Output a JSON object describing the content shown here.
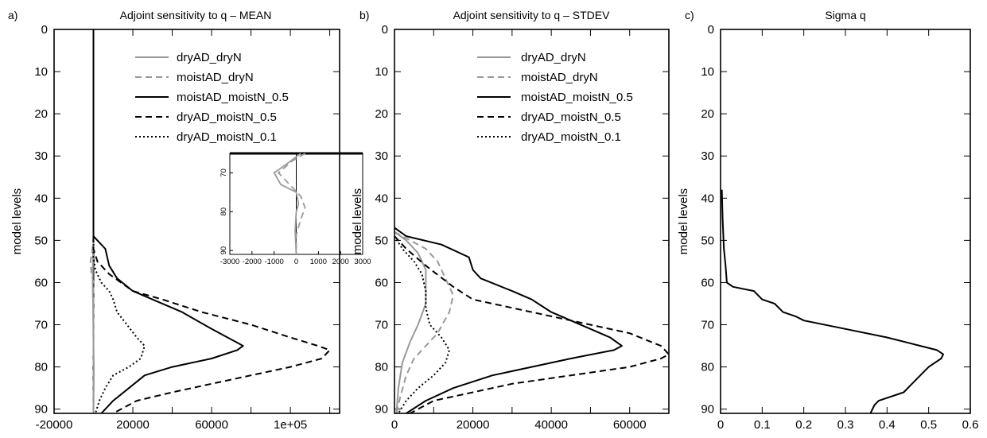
{
  "figure": {
    "ylabel": "model levels"
  },
  "chart_data": [
    {
      "type": "line",
      "panel_label": "a)",
      "title": "Adjoint sensitivity to q – MEAN",
      "xlabel": "",
      "ylabel": "model levels",
      "xlim": [
        -20000,
        125000
      ],
      "ylim": [
        91,
        0
      ],
      "y_inverted": true,
      "xticks": [
        -20000,
        0,
        20000,
        40000,
        60000,
        80000,
        100000,
        120000
      ],
      "xtick_labels": [
        "-20000",
        "",
        "20000",
        "",
        "60000",
        "",
        "1e+05",
        ""
      ],
      "yticks": [
        0,
        10,
        20,
        30,
        40,
        50,
        60,
        70,
        80,
        90
      ],
      "ytick_labels": [
        "0",
        "10",
        "20",
        "30",
        "40",
        "50",
        "60",
        "70",
        "80",
        "90"
      ],
      "vline_x": 0,
      "legend_position": "top-right",
      "series": [
        {
          "name": "dryAD_dryN",
          "color": "#999999",
          "style": "solid",
          "points": [
            [
              0,
              0
            ],
            [
              0,
              50
            ],
            [
              -300,
              55
            ],
            [
              -400,
              60
            ],
            [
              -200,
              65
            ],
            [
              -100,
              70
            ],
            [
              0,
              75
            ],
            [
              200,
              80
            ],
            [
              100,
              85
            ],
            [
              0,
              91
            ]
          ]
        },
        {
          "name": "moistAD_dryN",
          "color": "#999999",
          "style": "dashed",
          "points": [
            [
              0,
              0
            ],
            [
              0,
              49
            ],
            [
              -500,
              52
            ],
            [
              -1500,
              55
            ],
            [
              -1000,
              58
            ],
            [
              0,
              60
            ],
            [
              0,
              91
            ]
          ]
        },
        {
          "name": "moistAD_moistN_0.5",
          "color": "#000000",
          "style": "solid",
          "points": [
            [
              0,
              0
            ],
            [
              0,
              49
            ],
            [
              2000,
              50
            ],
            [
              6000,
              52
            ],
            [
              8000,
              56
            ],
            [
              12000,
              59
            ],
            [
              20000,
              62
            ],
            [
              30000,
              64
            ],
            [
              45000,
              67
            ],
            [
              60000,
              71
            ],
            [
              72000,
              74
            ],
            [
              76000,
              75
            ],
            [
              73000,
              76
            ],
            [
              60000,
              78
            ],
            [
              40000,
              80
            ],
            [
              26000,
              82
            ],
            [
              18000,
              85
            ],
            [
              10000,
              88
            ],
            [
              4000,
              91
            ]
          ]
        },
        {
          "name": "dryAD_moistN_0.5",
          "color": "#000000",
          "style": "dashed",
          "points": [
            [
              0,
              0
            ],
            [
              0,
              52
            ],
            [
              2000,
              55
            ],
            [
              8000,
              58
            ],
            [
              20000,
              62
            ],
            [
              35000,
              64
            ],
            [
              55000,
              67
            ],
            [
              80000,
              70
            ],
            [
              100000,
              73
            ],
            [
              114000,
              75
            ],
            [
              120000,
              76
            ],
            [
              116000,
              78
            ],
            [
              100000,
              80
            ],
            [
              80000,
              82
            ],
            [
              60000,
              84
            ],
            [
              40000,
              86
            ],
            [
              22000,
              88
            ],
            [
              10000,
              91
            ]
          ]
        },
        {
          "name": "dryAD_moistN_0.1",
          "color": "#000000",
          "style": "dotted",
          "points": [
            [
              0,
              0
            ],
            [
              0,
              54
            ],
            [
              1000,
              57
            ],
            [
              4000,
              60
            ],
            [
              8000,
              62
            ],
            [
              10000,
              64
            ],
            [
              12000,
              67
            ],
            [
              17000,
              70
            ],
            [
              22000,
              73
            ],
            [
              26000,
              75
            ],
            [
              24000,
              78
            ],
            [
              18000,
              80
            ],
            [
              10000,
              82
            ],
            [
              6000,
              85
            ],
            [
              3000,
              88
            ],
            [
              1000,
              91
            ]
          ]
        }
      ],
      "inset": {
        "xlim": [
          -3000,
          3000
        ],
        "ylim": [
          91,
          65
        ],
        "xticks": [
          -3000,
          -2000,
          -1000,
          0,
          1000,
          2000,
          3000
        ],
        "xtick_labels": [
          "-3000",
          "-2000",
          "-1000",
          "0",
          "1000",
          "2000",
          "3000"
        ],
        "yticks": [
          70,
          80,
          90
        ],
        "ytick_labels": [
          "70",
          "80",
          "90"
        ],
        "vline_x": 0,
        "series": [
          {
            "name": "dryAD_dryN",
            "color": "#999999",
            "style": "solid",
            "points": [
              [
                200,
                65
              ],
              [
                -500,
                68
              ],
              [
                -1000,
                70
              ],
              [
                -700,
                73
              ],
              [
                0,
                75
              ],
              [
                100,
                78
              ],
              [
                0,
                80
              ],
              [
                -50,
                85
              ],
              [
                0,
                91
              ]
            ]
          },
          {
            "name": "moistAD_dryN",
            "color": "#999999",
            "style": "dashed",
            "points": [
              [
                400,
                65
              ],
              [
                -200,
                67
              ],
              [
                -800,
                70
              ],
              [
                -300,
                73
              ],
              [
                200,
                76
              ],
              [
                400,
                79
              ],
              [
                200,
                82
              ],
              [
                0,
                86
              ],
              [
                0,
                91
              ]
            ]
          }
        ]
      }
    },
    {
      "type": "line",
      "panel_label": "b)",
      "title": "Adjoint sensitivity to q – STDEV",
      "xlabel": "",
      "ylabel": "model levels",
      "xlim": [
        0,
        70000
      ],
      "ylim": [
        91,
        0
      ],
      "y_inverted": true,
      "xticks": [
        0,
        10000,
        20000,
        30000,
        40000,
        50000,
        60000,
        70000
      ],
      "xtick_labels": [
        "0",
        "",
        "20000",
        "",
        "40000",
        "",
        "60000",
        ""
      ],
      "yticks": [
        0,
        10,
        20,
        30,
        40,
        50,
        60,
        70,
        80,
        90
      ],
      "ytick_labels": [
        "0",
        "10",
        "20",
        "30",
        "40",
        "50",
        "60",
        "70",
        "80",
        "90"
      ],
      "legend_position": "top-right",
      "series": [
        {
          "name": "dryAD_dryN",
          "color": "#999999",
          "style": "solid",
          "points": [
            [
              0,
              48
            ],
            [
              3000,
              50
            ],
            [
              6000,
              53
            ],
            [
              8000,
              57
            ],
            [
              8000,
              61
            ],
            [
              8000,
              65
            ],
            [
              6000,
              70
            ],
            [
              4000,
              74
            ],
            [
              2000,
              79
            ],
            [
              1000,
              85
            ],
            [
              500,
              91
            ]
          ]
        },
        {
          "name": "moistAD_dryN",
          "color": "#999999",
          "style": "dashed",
          "points": [
            [
              0,
              48
            ],
            [
              4000,
              50
            ],
            [
              8000,
              52
            ],
            [
              11000,
              55
            ],
            [
              13000,
              59
            ],
            [
              15000,
              63
            ],
            [
              14000,
              67
            ],
            [
              11000,
              72
            ],
            [
              8000,
              75
            ],
            [
              5000,
              78
            ],
            [
              3000,
              82
            ],
            [
              1500,
              87
            ],
            [
              500,
              91
            ]
          ]
        },
        {
          "name": "moistAD_moistN_0.5",
          "color": "#000000",
          "style": "solid",
          "points": [
            [
              0,
              47
            ],
            [
              3000,
              49
            ],
            [
              12000,
              51
            ],
            [
              19000,
              54
            ],
            [
              20000,
              57
            ],
            [
              22000,
              59
            ],
            [
              30000,
              62
            ],
            [
              35000,
              64
            ],
            [
              40000,
              67
            ],
            [
              50000,
              71
            ],
            [
              55000,
              73
            ],
            [
              58000,
              75
            ],
            [
              56000,
              76
            ],
            [
              45000,
              78
            ],
            [
              35000,
              80
            ],
            [
              25000,
              82
            ],
            [
              15000,
              85
            ],
            [
              8000,
              88
            ],
            [
              3000,
              91
            ]
          ]
        },
        {
          "name": "dryAD_moistN_0.5",
          "color": "#000000",
          "style": "dashed",
          "points": [
            [
              0,
              49
            ],
            [
              3000,
              52
            ],
            [
              8000,
              56
            ],
            [
              15000,
              61
            ],
            [
              20000,
              64
            ],
            [
              30000,
              66
            ],
            [
              45000,
              69
            ],
            [
              60000,
              72
            ],
            [
              68000,
              75
            ],
            [
              70000,
              77
            ],
            [
              68000,
              78
            ],
            [
              60000,
              80
            ],
            [
              45000,
              82
            ],
            [
              30000,
              84
            ],
            [
              20000,
              86
            ],
            [
              10000,
              88
            ],
            [
              4000,
              91
            ]
          ]
        },
        {
          "name": "dryAD_moistN_0.1",
          "color": "#000000",
          "style": "dotted",
          "points": [
            [
              0,
              49
            ],
            [
              2000,
              52
            ],
            [
              5000,
              55
            ],
            [
              7000,
              58
            ],
            [
              8000,
              62
            ],
            [
              8000,
              66
            ],
            [
              9000,
              70
            ],
            [
              12000,
              73
            ],
            [
              14000,
              76
            ],
            [
              13000,
              79
            ],
            [
              10000,
              82
            ],
            [
              6000,
              85
            ],
            [
              3000,
              88
            ],
            [
              1000,
              91
            ]
          ]
        }
      ]
    },
    {
      "type": "line",
      "panel_label": "c)",
      "title": "Sigma q",
      "xlabel": "",
      "ylabel": "model levels",
      "xlim": [
        0,
        0.6
      ],
      "ylim": [
        91,
        0
      ],
      "y_inverted": true,
      "xticks": [
        0,
        0.1,
        0.2,
        0.3,
        0.4,
        0.5,
        0.6
      ],
      "xtick_labels": [
        "0",
        "0.1",
        "0.2",
        "0.3",
        "0.4",
        "0.5",
        "0.6"
      ],
      "yticks": [
        0,
        10,
        20,
        30,
        40,
        50,
        60,
        70,
        80,
        90
      ],
      "ytick_labels": [
        "0",
        "10",
        "20",
        "30",
        "40",
        "50",
        "60",
        "70",
        "80",
        "90"
      ],
      "series": [
        {
          "name": "",
          "color": "#000000",
          "style": "solid",
          "points": [
            [
              0.003,
              38
            ],
            [
              0.005,
              45
            ],
            [
              0.008,
              52
            ],
            [
              0.012,
              56
            ],
            [
              0.015,
              60
            ],
            [
              0.03,
              61
            ],
            [
              0.08,
              62
            ],
            [
              0.1,
              64
            ],
            [
              0.13,
              65
            ],
            [
              0.15,
              67
            ],
            [
              0.18,
              68
            ],
            [
              0.2,
              69
            ],
            [
              0.3,
              71
            ],
            [
              0.4,
              73
            ],
            [
              0.48,
              75
            ],
            [
              0.52,
              76
            ],
            [
              0.535,
              77
            ],
            [
              0.53,
              78
            ],
            [
              0.5,
              80
            ],
            [
              0.48,
              82
            ],
            [
              0.46,
              84
            ],
            [
              0.44,
              86
            ],
            [
              0.38,
              88
            ],
            [
              0.37,
              89
            ],
            [
              0.36,
              91
            ]
          ]
        }
      ]
    }
  ]
}
